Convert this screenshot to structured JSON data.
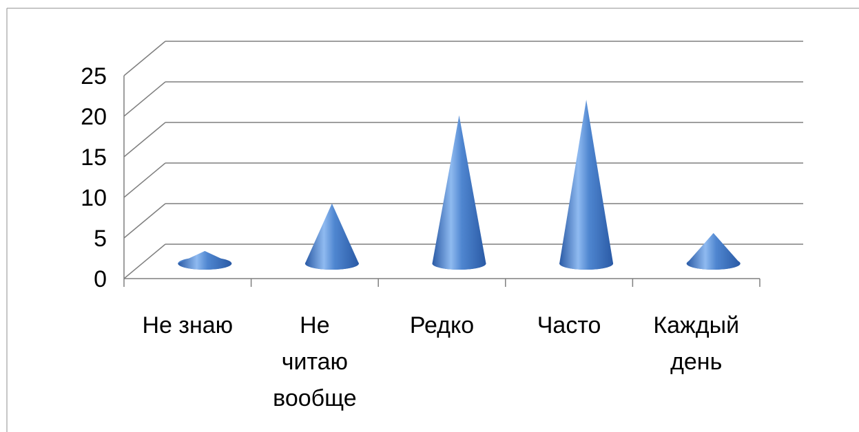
{
  "chart_data": {
    "type": "bar",
    "style": "3d-cone",
    "categories": [
      "Не знаю",
      "Не читаю вообще",
      "Редко",
      "Часто",
      "Каждый день"
    ],
    "category_lines": [
      [
        "Не знаю"
      ],
      [
        "Не",
        "читаю",
        "вообще"
      ],
      [
        "Редко"
      ],
      [
        "Часто"
      ],
      [
        "Каждый",
        "день"
      ]
    ],
    "values": [
      1.6,
      7.7,
      19,
      21,
      3.9
    ],
    "ylim": [
      0,
      25
    ],
    "yticks": [
      "0",
      "5",
      "10",
      "15",
      "20",
      "25"
    ],
    "grid": true,
    "legend": "none",
    "colors": {
      "cone_dark": "#2a5aa5",
      "cone_mid": "#4f86d0",
      "cone_light": "#8fbaf0",
      "grid": "#7f7f7f",
      "frame": "#8c8c8c"
    }
  }
}
